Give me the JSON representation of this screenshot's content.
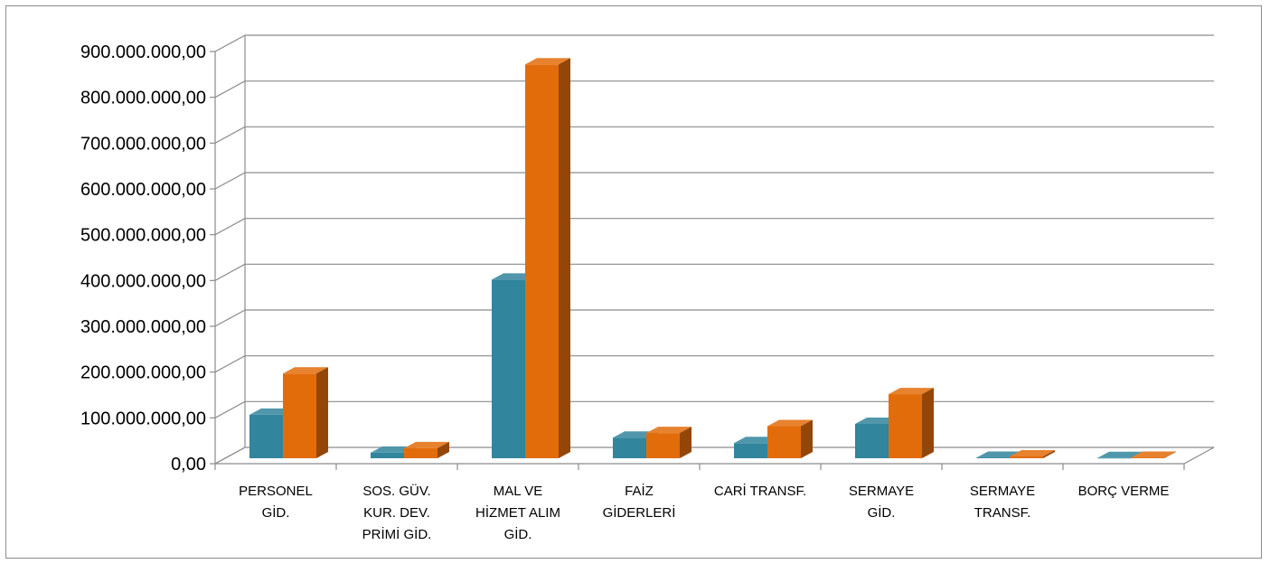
{
  "chart_data": {
    "type": "bar",
    "style": "3d-clustered-column",
    "categories": [
      [
        "PERSONEL",
        "GİD."
      ],
      [
        "SOS. GÜV.",
        "KUR. DEV.",
        "PRİMİ GİD."
      ],
      [
        "MAL VE",
        "HİZMET ALIM",
        "GİD."
      ],
      [
        "FAİZ",
        "GİDERLERİ"
      ],
      [
        "CARİ TRANSF."
      ],
      [
        "SERMAYE",
        "GİD."
      ],
      [
        "SERMAYE",
        "TRANSF."
      ],
      [
        "BORÇ VERME"
      ]
    ],
    "series": [
      {
        "color": "#31859C",
        "values": [
          95000000,
          12000000,
          390000000,
          45000000,
          33000000,
          75000000,
          1000000,
          500000
        ]
      },
      {
        "color": "#E36C0A",
        "values": [
          185000000,
          22000000,
          860000000,
          55000000,
          70000000,
          140000000,
          4000000,
          1000000
        ]
      }
    ],
    "yticks": [
      "0,00",
      "100.000.000,00",
      "200.000.000,00",
      "300.000.000,00",
      "400.000.000,00",
      "500.000.000,00",
      "600.000.000,00",
      "700.000.000,00",
      "800.000.000,00",
      "900.000.000,00"
    ],
    "ylim": [
      0,
      900000000
    ],
    "grid": true,
    "legend": "none"
  }
}
